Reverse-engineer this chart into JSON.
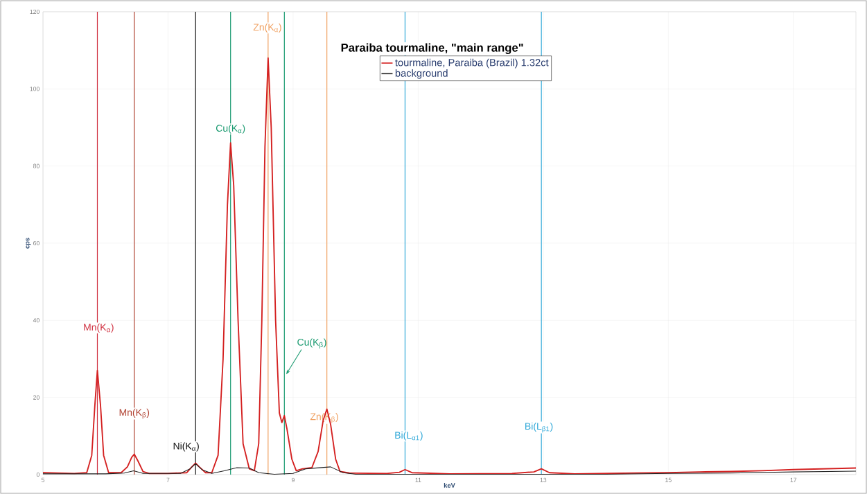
{
  "chart_data": {
    "type": "line",
    "legend_title": "Paraiba tourmaline, \"main range\"",
    "xlabel": "keV",
    "ylabel": "cps",
    "xlim": [
      5,
      18
    ],
    "ylim": [
      0,
      120
    ],
    "xticks": [
      5,
      7,
      9,
      11,
      13,
      15,
      17
    ],
    "yticks": [
      0,
      20,
      40,
      60,
      80,
      100,
      120
    ],
    "grid": true,
    "legend": "top",
    "marker": "none",
    "line_style": "solid",
    "series": [
      {
        "name": "tourmaline, Paraiba (Brazil) 1.32ct",
        "color": "#d42020",
        "x": [
          5.0,
          5.5,
          5.7,
          5.78,
          5.83,
          5.87,
          5.92,
          5.97,
          6.05,
          6.25,
          6.35,
          6.42,
          6.46,
          6.52,
          6.6,
          6.7,
          7.0,
          7.3,
          7.38,
          7.44,
          7.5,
          7.6,
          7.7,
          7.8,
          7.88,
          7.95,
          8.0,
          8.05,
          8.12,
          8.2,
          8.3,
          8.38,
          8.45,
          8.5,
          8.55,
          8.6,
          8.65,
          8.72,
          8.78,
          8.82,
          8.86,
          8.9,
          8.98,
          9.05,
          9.15,
          9.3,
          9.4,
          9.48,
          9.54,
          9.6,
          9.68,
          9.75,
          9.9,
          10.5,
          10.7,
          10.79,
          10.9,
          11.5,
          12.5,
          12.85,
          12.97,
          13.1,
          13.5,
          14.5,
          15.0,
          15.5,
          16.0,
          16.5,
          17.0,
          17.5,
          18.0
        ],
        "values": [
          0.5,
          0.3,
          0.5,
          5,
          18,
          27,
          18,
          5,
          0.5,
          0.5,
          2,
          4.5,
          5.3,
          3.5,
          0.8,
          0.3,
          0.3,
          0.5,
          2,
          3,
          2,
          0.5,
          0.5,
          5,
          30,
          70,
          86,
          75,
          40,
          8,
          1.5,
          1.0,
          8,
          40,
          85,
          108,
          90,
          40,
          16,
          13.5,
          15.3,
          12,
          4,
          1,
          1.5,
          1.8,
          6,
          14,
          17,
          13,
          4,
          0.8,
          0.4,
          0.3,
          0.6,
          1.3,
          0.5,
          0.2,
          0.3,
          0.7,
          1.5,
          0.5,
          0.2,
          0.4,
          0.5,
          0.7,
          0.8,
          1.0,
          1.3,
          1.5,
          1.7
        ]
      },
      {
        "name": "background",
        "color": "#222222",
        "x": [
          5.0,
          6.0,
          6.3,
          6.45,
          6.6,
          7.2,
          7.35,
          7.44,
          7.55,
          7.7,
          7.9,
          8.1,
          8.3,
          8.45,
          8.7,
          9.0,
          9.2,
          9.6,
          9.8,
          10.0,
          14.0,
          15.0,
          16.0,
          17.0,
          18.0
        ],
        "values": [
          0.2,
          0.2,
          0.4,
          1,
          0.3,
          0.3,
          1.5,
          2.8,
          1.2,
          0.3,
          1,
          1.8,
          1.7,
          0.5,
          0.1,
          0.3,
          1.5,
          2.0,
          0.5,
          0.1,
          0.1,
          0.3,
          0.4,
          0.7,
          0.9
        ]
      }
    ],
    "ref_lines": [
      {
        "axis": "x",
        "value": 5.87,
        "label": "Mn(K$_{α}$)",
        "color": "#d03040"
      },
      {
        "axis": "x",
        "value": 6.46,
        "label": "Mn(K$_{β}$)",
        "color": "#b04030"
      },
      {
        "axis": "x",
        "value": 7.44,
        "label": "Ni(K$_{α}$)",
        "color": "#111111"
      },
      {
        "axis": "x",
        "value": 8.0,
        "label": "Cu(K$_{α}$)",
        "color": "#1a9a70"
      },
      {
        "axis": "x",
        "value": 8.6,
        "label": "Zn(K$_{α}$)",
        "color": "#f0a060"
      },
      {
        "axis": "x",
        "value": 8.86,
        "label": "Cu(K$_{β}$)",
        "color": "#1a9a70"
      },
      {
        "axis": "x",
        "value": 9.54,
        "label": "Zn(K$_{β}$)",
        "color": "#f0a060"
      },
      {
        "axis": "x",
        "value": 10.79,
        "label": "Bi(L$_{α1}$)",
        "color": "#30a8d8"
      },
      {
        "axis": "x",
        "value": 12.97,
        "label": "Bi(L$_{β1}$)",
        "color": "#30a8d8"
      }
    ]
  }
}
